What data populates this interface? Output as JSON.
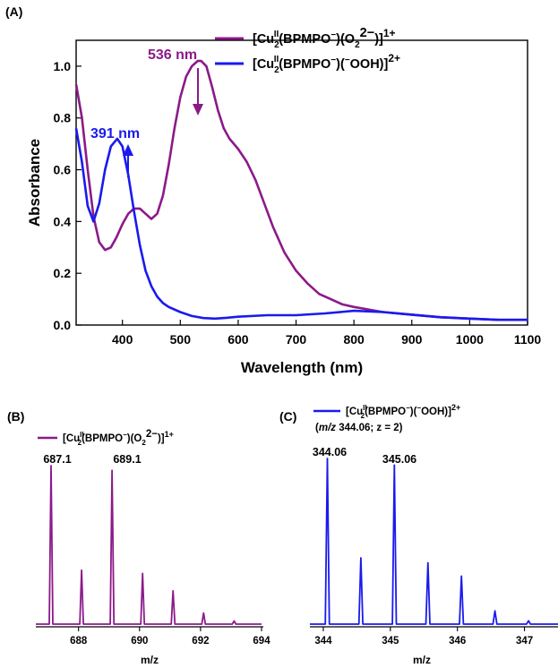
{
  "chart_data": [
    {
      "panel": "(A)",
      "type": "line",
      "xlabel": "Wavelength (nm)",
      "ylabel": "Absorbance",
      "xlim": [
        320,
        1100
      ],
      "ylim": [
        0,
        1.1
      ],
      "x_ticks": [
        400,
        500,
        600,
        700,
        800,
        900,
        1000,
        1100
      ],
      "y_ticks": [
        0.0,
        0.2,
        0.4,
        0.6,
        0.8,
        1.0
      ],
      "x_tick_labels": [
        "400",
        "500",
        "600",
        "700",
        "800",
        "900",
        "1000",
        "1100"
      ],
      "y_tick_labels": [
        "0.0",
        "0.2",
        "0.4",
        "0.6",
        "0.8",
        "1.0"
      ],
      "grid": false,
      "legend_position": "top-right",
      "series": [
        {
          "name": "[Cu2II(BPMPO−)(O22−)]1+",
          "color": "#8b1a89",
          "x": [
            320,
            330,
            340,
            350,
            360,
            370,
            380,
            390,
            400,
            410,
            420,
            430,
            440,
            450,
            460,
            470,
            480,
            490,
            500,
            510,
            520,
            530,
            536,
            545,
            555,
            565,
            575,
            585,
            600,
            615,
            630,
            645,
            660,
            680,
            700,
            720,
            740,
            760,
            780,
            800,
            850,
            900,
            950,
            1000,
            1050,
            1100
          ],
          "y": [
            0.93,
            0.8,
            0.6,
            0.42,
            0.32,
            0.29,
            0.3,
            0.34,
            0.39,
            0.43,
            0.45,
            0.45,
            0.43,
            0.41,
            0.43,
            0.5,
            0.62,
            0.76,
            0.88,
            0.96,
            1.0,
            1.02,
            1.02,
            1.0,
            0.92,
            0.83,
            0.76,
            0.72,
            0.68,
            0.63,
            0.56,
            0.47,
            0.38,
            0.28,
            0.21,
            0.16,
            0.12,
            0.1,
            0.08,
            0.07,
            0.05,
            0.04,
            0.03,
            0.025,
            0.02,
            0.02
          ]
        },
        {
          "name": "[Cu2II(BPMPO−)(−OOH)]2+",
          "color": "#1a1aee",
          "x": [
            320,
            330,
            340,
            350,
            360,
            370,
            380,
            391,
            400,
            410,
            420,
            430,
            440,
            450,
            460,
            470,
            480,
            500,
            520,
            540,
            560,
            580,
            600,
            650,
            700,
            750,
            800,
            850,
            900,
            950,
            1000,
            1050,
            1100
          ],
          "y": [
            0.76,
            0.63,
            0.46,
            0.4,
            0.47,
            0.6,
            0.69,
            0.72,
            0.69,
            0.58,
            0.44,
            0.31,
            0.21,
            0.15,
            0.11,
            0.085,
            0.07,
            0.05,
            0.035,
            0.027,
            0.025,
            0.028,
            0.032,
            0.038,
            0.038,
            0.045,
            0.055,
            0.05,
            0.04,
            0.03,
            0.025,
            0.02,
            0.02
          ]
        }
      ],
      "annotations": [
        {
          "text": "536 nm",
          "color": "#8b1a89",
          "x": 536,
          "arrow": "down"
        },
        {
          "text": "391 nm",
          "color": "#1a1aee",
          "x": 391,
          "arrow": "up"
        }
      ]
    },
    {
      "panel": "(B)",
      "type": "line",
      "xlabel": "m/z",
      "ylabel": "",
      "xlim": [
        686.6,
        694
      ],
      "x_ticks": [
        688,
        690,
        692,
        694
      ],
      "x_tick_labels": [
        "688",
        "690",
        "692",
        "694"
      ],
      "legend_position": "top",
      "series": [
        {
          "name": "[CuII2(BPMPO−)(O22−)]1+",
          "color": "#8b1a89",
          "peaks_x": [
            687.1,
            688.1,
            689.1,
            690.1,
            691.1,
            692.1,
            693.1
          ],
          "peaks_y": [
            1.0,
            0.34,
            0.97,
            0.32,
            0.21,
            0.07,
            0.02
          ]
        }
      ],
      "peak_labels": [
        "687.1",
        "689.1"
      ]
    },
    {
      "panel": "(C)",
      "type": "line",
      "xlabel": "m/z",
      "ylabel": "",
      "xlim": [
        343.8,
        347.5
      ],
      "x_ticks": [
        344,
        345,
        346,
        347
      ],
      "x_tick_labels": [
        "344",
        "345",
        "346",
        "347"
      ],
      "legend_position": "top",
      "series": [
        {
          "name": "[CuII2(BPMPO−)(−OOH)]2+",
          "color": "#1a1aee",
          "peaks_x": [
            344.06,
            344.56,
            345.06,
            345.56,
            346.06,
            346.56,
            347.06
          ],
          "peaks_y": [
            1.0,
            0.4,
            0.96,
            0.37,
            0.29,
            0.08,
            0.02
          ]
        }
      ],
      "legend_subtext": "(m/z 344.06; z = 2)",
      "peak_labels": [
        "344.06",
        "345.06"
      ]
    }
  ],
  "labels": {
    "panel_a": "(A)",
    "panel_b": "(B)",
    "panel_c": "(C)",
    "legend_a1_main": "[Cu",
    "legend_a1_sub": "2",
    "legend_a1_sup": "II",
    "legend_a1_mid": "(BPMPO",
    "legend_a1_minus": "−",
    "legend_a1_o": ")(O",
    "legend_a1_o_sub": "2",
    "legend_a1_o_sup": "2−",
    "legend_a1_end": ")]",
    "legend_a1_charge": "1+",
    "legend_a2_main": "[Cu",
    "legend_a2_sub": "2",
    "legend_a2_sup": "II",
    "legend_a2_mid": "(BPMPO",
    "legend_a2_minus": "−",
    "legend_a2_ooh": ")(",
    "legend_a2_ooh_minus": "−",
    "legend_a2_end": "OOH)]",
    "legend_a2_charge": "2+",
    "legend_b": "[Cu",
    "legend_b_sup": "II",
    "legend_b_sub": "2",
    "legend_b_mid": "(BPMPO",
    "legend_b_minus": "−",
    "legend_b_o": ")(O",
    "legend_b_o_sub": "2",
    "legend_b_o_sup": "2−",
    "legend_b_end": ")]",
    "legend_b_charge": "1+",
    "legend_c": "[Cu",
    "legend_c_sup": "II",
    "legend_c_sub": "2",
    "legend_c_mid": "(BPMPO",
    "legend_c_minus": "−",
    "legend_c_ooh": ")(",
    "legend_c_ooh_minus": "−",
    "legend_c_end": "OOH)]",
    "legend_c_charge": "2+",
    "legend_c_sub_mz": "m/z",
    "legend_c_sub_rest": " 344.06; z = 2)",
    "legend_c_sub_open": "("
  },
  "colors": {
    "purple": "#8b1a89",
    "blue": "#1a1aee"
  }
}
